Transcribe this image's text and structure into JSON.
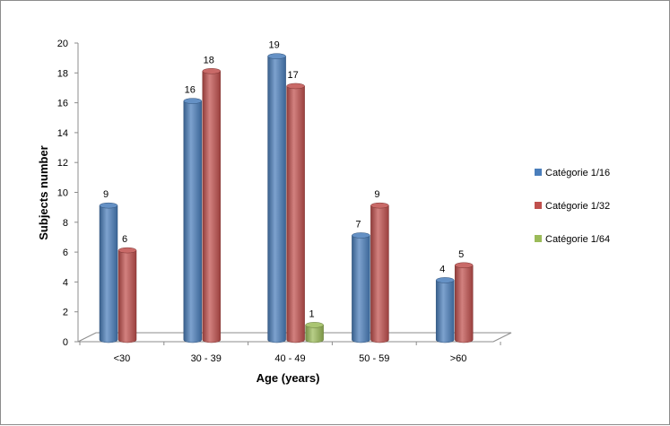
{
  "chart_data": {
    "type": "bar",
    "title": "",
    "xlabel": "Age (years)",
    "ylabel": "Subjects number",
    "categories": [
      "<30",
      "30 - 39",
      "40 - 49",
      "50 - 59",
      ">60"
    ],
    "ylim": [
      0,
      20
    ],
    "yticks": [
      0,
      2,
      4,
      6,
      8,
      10,
      12,
      14,
      16,
      18,
      20
    ],
    "grid": false,
    "legend_position": "right",
    "series": [
      {
        "name": "Catégorie 1/16",
        "values": [
          9,
          16,
          19,
          7,
          4
        ],
        "color": "#4a7ebb"
      },
      {
        "name": "Catégorie 1/32",
        "values": [
          6,
          18,
          17,
          9,
          5
        ],
        "color": "#c0504d"
      },
      {
        "name": "Catégorie 1/64",
        "values": [
          null,
          null,
          1,
          null,
          null
        ],
        "color": "#9bbb59"
      }
    ]
  }
}
